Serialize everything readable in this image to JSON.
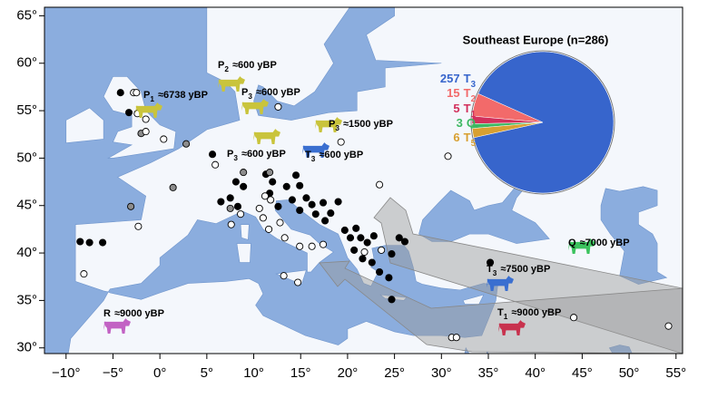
{
  "chart_data": [
    {
      "type": "map",
      "xlim": [
        -12.3,
        55.7
      ],
      "ylim": [
        29.4,
        65.9
      ],
      "xticks": [
        {
          "value": -10,
          "label": "−10°"
        },
        {
          "value": -5,
          "label": "−5°"
        },
        {
          "value": 0,
          "label": "0°"
        },
        {
          "value": 5,
          "label": "5°"
        },
        {
          "value": 10,
          "label": "10°"
        },
        {
          "value": 15,
          "label": "15°"
        },
        {
          "value": 20,
          "label": "20°"
        },
        {
          "value": 25,
          "label": "25°"
        },
        {
          "value": 30,
          "label": "30°"
        },
        {
          "value": 35,
          "label": "35°"
        },
        {
          "value": 40,
          "label": "40°"
        },
        {
          "value": 45,
          "label": "45°"
        },
        {
          "value": 50,
          "label": "50°"
        },
        {
          "value": 55,
          "label": "55°"
        }
      ],
      "yticks": [
        {
          "value": 30,
          "label": "30°"
        },
        {
          "value": 35,
          "label": "35°"
        },
        {
          "value": 40,
          "label": "40°"
        },
        {
          "value": 45,
          "label": "45°"
        },
        {
          "value": 50,
          "label": "50°"
        },
        {
          "value": 55,
          "label": "55°"
        },
        {
          "value": 60,
          "label": "60°"
        },
        {
          "value": 65,
          "label": "65°"
        }
      ],
      "series": [
        {
          "color": "#000000",
          "x": [
            -4.2,
            -3.3,
            -8.5,
            -7.5,
            -6.1,
            5.6,
            6.5,
            7.5,
            8.1,
            8.9,
            8.3,
            11.3,
            12,
            11.7,
            12.6,
            13.5,
            14.5,
            14.9,
            15.6,
            16.2,
            16.6,
            17.4,
            17.6,
            18.2,
            19,
            19.7,
            20.3,
            20.9,
            21.4,
            22.1,
            22.8,
            20.7,
            21.6,
            22.6,
            23.4,
            24.4,
            25.5,
            26.1,
            24.7,
            24.7,
            35.2,
            14.9,
            14.1
          ],
          "y": [
            56.9,
            54.8,
            41.2,
            41.1,
            41.1,
            50.4,
            45.4,
            45.8,
            47.5,
            47,
            44.9,
            48.3,
            47.5,
            46.3,
            44.9,
            47,
            48.2,
            47.1,
            45.8,
            45.1,
            44.1,
            45.3,
            43.4,
            44.2,
            45.4,
            42.4,
            41.6,
            42.6,
            41.6,
            41.1,
            41.8,
            40.3,
            39.4,
            39,
            38,
            37.4,
            41.6,
            41.2,
            39.9,
            35.1,
            39,
            44.5,
            45.6
          ]
        },
        {
          "color": "#8c8c8c",
          "x": [
            -2,
            2.8,
            1.4,
            -3.1,
            8.9,
            7.5,
            11.7
          ],
          "y": [
            52.6,
            51.5,
            46.9,
            44.9,
            48.5,
            44.7,
            48.5
          ]
        },
        {
          "color": "#ffffff",
          "x": [
            -2.8,
            -2.5,
            -2.4,
            -1.5,
            -1.5,
            0.4,
            12.6,
            19.3,
            30.7,
            23.4,
            -2.3,
            -8.1,
            5.9,
            7.6,
            8.6,
            11.2,
            11.8,
            10.6,
            11,
            11.6,
            12.8,
            13.3,
            14.9,
            16.2,
            13.2,
            14.7,
            17.4,
            21.8,
            23.6,
            31.1,
            31.6,
            44.1,
            54.2
          ],
          "y": [
            56.9,
            56.9,
            54.7,
            54.1,
            52.8,
            52,
            55.4,
            51.7,
            50.2,
            47.2,
            42.8,
            37.8,
            49.3,
            43,
            44.1,
            46,
            45.6,
            44.7,
            43.7,
            42.5,
            43.2,
            41.6,
            40.7,
            40.7,
            37.6,
            36.9,
            40.9,
            40.1,
            40.3,
            31.1,
            31.1,
            33.2,
            32.3
          ]
        }
      ],
      "annotations": [
        {
          "haplogroup": "P2",
          "text": "≈600 yBP",
          "color": "#c9c43c"
        },
        {
          "haplogroup": "P1",
          "text": "≈6738 yBP",
          "color": "#c9c43c"
        },
        {
          "haplogroup": "P3",
          "text": "≈600 yBP",
          "color": "#c9c43c"
        },
        {
          "haplogroup": "P3",
          "text": "≈1500 yBP",
          "color": "#c9c43c"
        },
        {
          "haplogroup": "P3",
          "text": "≈600 yBP",
          "color": "#c9c43c"
        },
        {
          "haplogroup": "T3",
          "text": "≈600 yBP",
          "color": "#3a6fd0"
        },
        {
          "haplogroup": "T3",
          "text": "≈7500 yBP",
          "color": "#3a6fd0"
        },
        {
          "haplogroup": "Q",
          "text": "≈7000 yBP",
          "color": "#3cc35e"
        },
        {
          "haplogroup": "T1",
          "text": "≈9000 yBP",
          "color": "#c8324e"
        },
        {
          "haplogroup": "R",
          "text": "≈9000 yBP",
          "color": "#c262c4"
        }
      ]
    },
    {
      "type": "pie",
      "title": "Southeast Europe (n=286)",
      "labels": [
        "T3",
        "T2",
        "T1",
        "Q",
        "T5"
      ],
      "values": [
        257,
        15,
        5,
        3,
        6
      ],
      "colors": [
        "#3765cc",
        "#f26a6a",
        "#d2305c",
        "#3cb862",
        "#d8a032"
      ]
    }
  ]
}
